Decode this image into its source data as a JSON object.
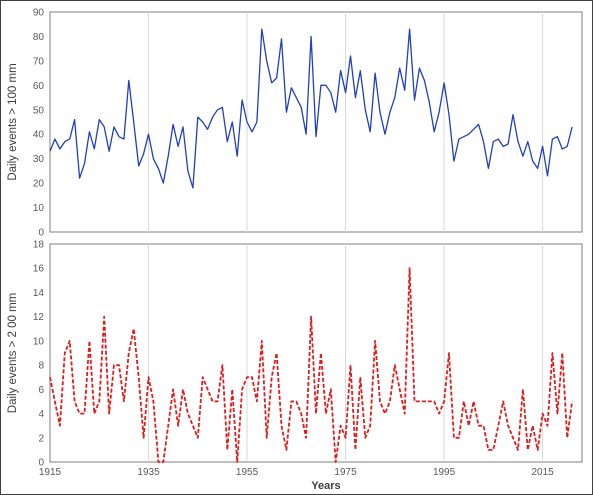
{
  "chart_data": [
    {
      "type": "line",
      "ylabel": "Daily events > 100 mm",
      "ylim": [
        0,
        90
      ],
      "yticks": [
        0,
        10,
        20,
        30,
        40,
        50,
        60,
        70,
        80,
        90
      ],
      "xlim": [
        1915,
        2023
      ],
      "grid": "vertical",
      "colors": {
        "series": "#1f3fbf",
        "grid": "#d9d9d9"
      },
      "series": [
        {
          "x": [
            1915,
            1916,
            1917,
            1918,
            1919,
            1920,
            1921,
            1922,
            1923,
            1924,
            1925,
            1926,
            1927,
            1928,
            1929,
            1930,
            1931,
            1932,
            1933,
            1934,
            1935,
            1936,
            1937,
            1938,
            1939,
            1940,
            1941,
            1942,
            1943,
            1944,
            1945,
            1946,
            1947,
            1948,
            1949,
            1950,
            1951,
            1952,
            1953,
            1954,
            1955,
            1956,
            1957,
            1958,
            1959,
            1960,
            1961,
            1962,
            1963,
            1964,
            1965,
            1966,
            1967,
            1968,
            1969,
            1970,
            1971,
            1972,
            1973,
            1974,
            1975,
            1976,
            1977,
            1978,
            1979,
            1980,
            1981,
            1982,
            1983,
            1984,
            1985,
            1986,
            1987,
            1988,
            1989,
            1990,
            1991,
            1992,
            1993,
            1994,
            1995,
            1996,
            1997,
            1998,
            1999,
            2000,
            2001,
            2002,
            2003,
            2004,
            2005,
            2006,
            2007,
            2008,
            2009,
            2010,
            2011,
            2012,
            2013,
            2014,
            2015,
            2016,
            2017,
            2018,
            2019,
            2020,
            2021
          ],
          "values": [
            33,
            38,
            34,
            37,
            38,
            46,
            22,
            28,
            41,
            34,
            46,
            43,
            33,
            43,
            39,
            38,
            62,
            45,
            27,
            32,
            40,
            30,
            26,
            20,
            31,
            44,
            35,
            43,
            25,
            18,
            47,
            45,
            42,
            47,
            50,
            51,
            37,
            45,
            31,
            54,
            45,
            41,
            45,
            83,
            70,
            61,
            63,
            79,
            49,
            59,
            55,
            51,
            40,
            80,
            39,
            60,
            60,
            57,
            49,
            66,
            57,
            72,
            55,
            66,
            50,
            41,
            65,
            49,
            40,
            49,
            55,
            67,
            58,
            83,
            54,
            67,
            62,
            53,
            41,
            49,
            61,
            48,
            29,
            38,
            39,
            40,
            42,
            44,
            37,
            26,
            37,
            38,
            35,
            36,
            48,
            37,
            31,
            37,
            29,
            26,
            35,
            23,
            38,
            39,
            34,
            35,
            43
          ]
        }
      ]
    },
    {
      "type": "line",
      "ylabel": "Daily events > 2 00 mm",
      "xlabel": "Years",
      "ylim": [
        0,
        18
      ],
      "yticks": [
        0,
        2,
        4,
        6,
        8,
        10,
        12,
        14,
        16,
        18
      ],
      "xlim": [
        1915,
        2023
      ],
      "xticks": [
        1915,
        1935,
        1955,
        1975,
        1995,
        2015
      ],
      "grid": "vertical",
      "line_style": "dashed",
      "colors": {
        "series": "#e01b1b",
        "grid": "#d9d9d9"
      },
      "series": [
        {
          "x": [
            1915,
            1916,
            1917,
            1918,
            1919,
            1920,
            1921,
            1922,
            1923,
            1924,
            1925,
            1926,
            1927,
            1928,
            1929,
            1930,
            1931,
            1932,
            1933,
            1934,
            1935,
            1936,
            1937,
            1938,
            1939,
            1940,
            1941,
            1942,
            1943,
            1944,
            1945,
            1946,
            1947,
            1948,
            1949,
            1950,
            1951,
            1952,
            1953,
            1954,
            1955,
            1956,
            1957,
            1958,
            1959,
            1960,
            1961,
            1962,
            1963,
            1964,
            1965,
            1966,
            1967,
            1968,
            1969,
            1970,
            1971,
            1972,
            1973,
            1974,
            1975,
            1976,
            1977,
            1978,
            1979,
            1980,
            1981,
            1982,
            1983,
            1984,
            1985,
            1986,
            1987,
            1988,
            1989,
            1990,
            1991,
            1992,
            1993,
            1994,
            1995,
            1996,
            1997,
            1998,
            1999,
            2000,
            2001,
            2002,
            2003,
            2004,
            2005,
            2006,
            2007,
            2008,
            2009,
            2010,
            2011,
            2012,
            2013,
            2014,
            2015,
            2016,
            2017,
            2018,
            2019,
            2020,
            2021
          ],
          "values": [
            7,
            5,
            3,
            9,
            10,
            5,
            4,
            4,
            10,
            4,
            5,
            12,
            4,
            8,
            8,
            5,
            9,
            11,
            7,
            2,
            7,
            5,
            0,
            0,
            3,
            6,
            3,
            6,
            4,
            3,
            2,
            7,
            6,
            5,
            5,
            8,
            1,
            6,
            0,
            6,
            7,
            7,
            5,
            10,
            2,
            7,
            9,
            3,
            1,
            5,
            5,
            4,
            2,
            12,
            4,
            9,
            4,
            6,
            0,
            3,
            2,
            8,
            1,
            7,
            2,
            3,
            10,
            5,
            4,
            5,
            8,
            6,
            4,
            16,
            5,
            5,
            5,
            5,
            5,
            4,
            5,
            9,
            2,
            2,
            5,
            3,
            5,
            3,
            3,
            1,
            1,
            3,
            5,
            3,
            2,
            1,
            6,
            1,
            3,
            1,
            4,
            3,
            9,
            4,
            9,
            2,
            5
          ]
        }
      ]
    }
  ]
}
